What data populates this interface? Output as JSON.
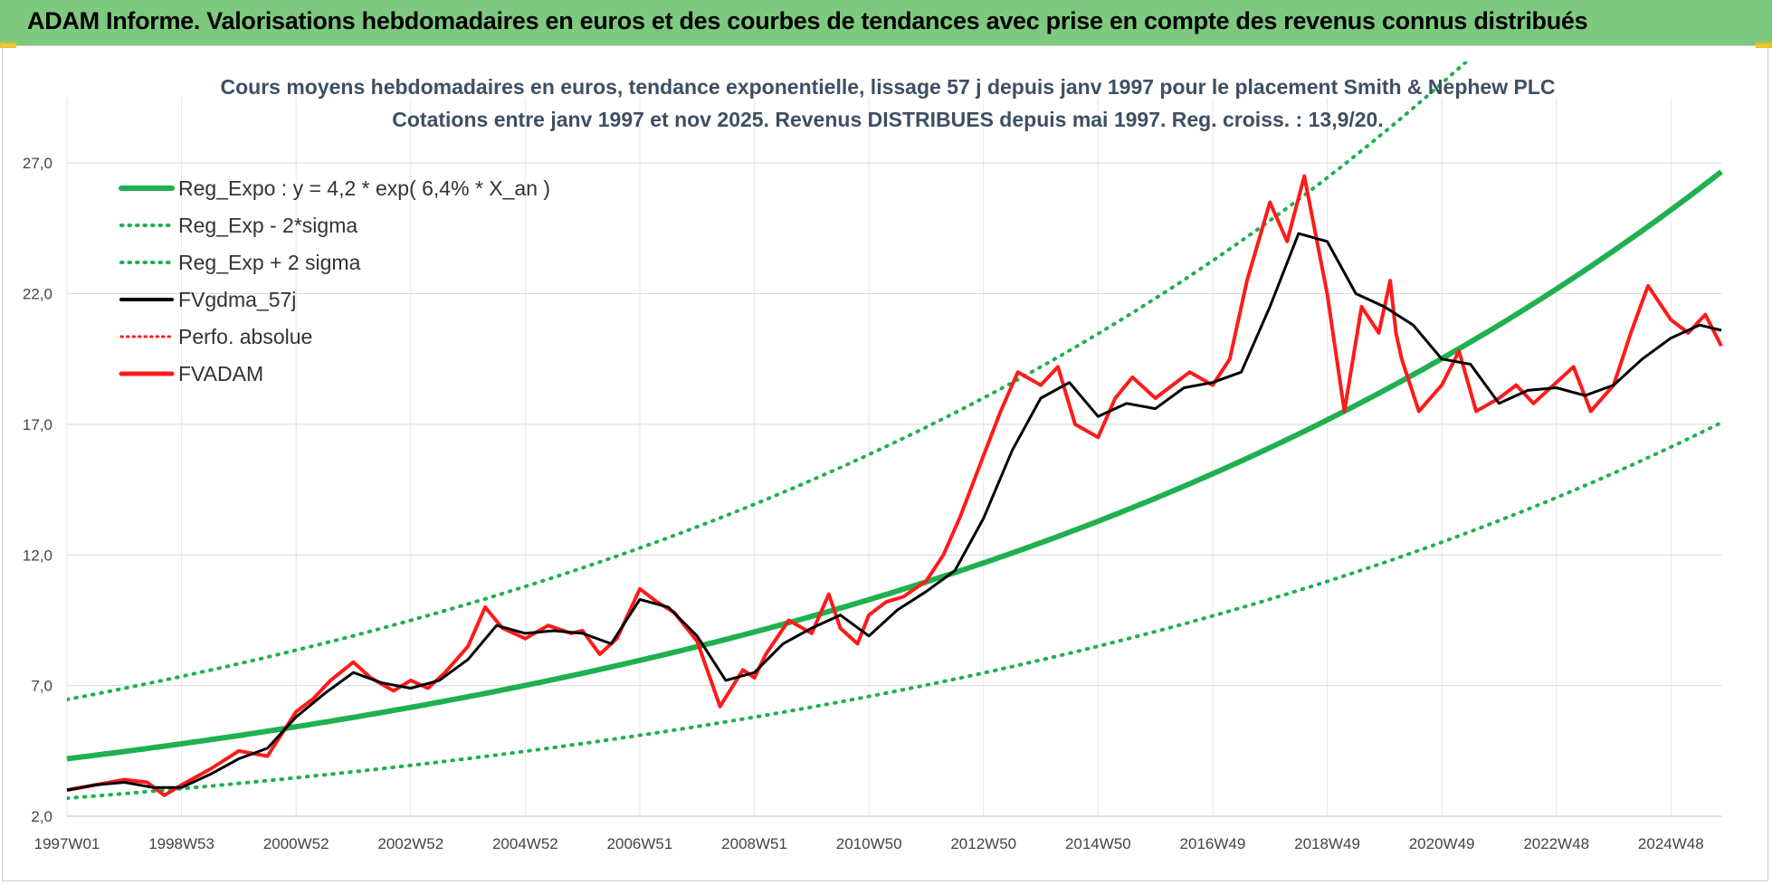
{
  "banner": {
    "title": "ADAM Informe. Valorisations hebdomadaires en euros et des courbes de tendances avec prise en compte des revenus connus distribués"
  },
  "chart_data": {
    "type": "line",
    "title_line1": "Cours moyens hebdomadaires en euros, tendance exponentielle, lissage 57 j depuis janv 1997 pour le placement Smith & Nephew PLC",
    "title_line2": "Cotations entre janv 1997 et nov 2025. Revenus DISTRIBUES depuis mai 1997. Reg. croiss. : 13,9/20.",
    "xlabel": "",
    "ylabel": "",
    "x_start_year": 1997.0,
    "x_end_year": 2025.88,
    "x_tick_labels": [
      "1997W01",
      "1998W53",
      "2000W52",
      "2002W52",
      "2004W52",
      "2006W51",
      "2008W51",
      "2010W50",
      "2012W50",
      "2014W50",
      "2016W49",
      "2018W49",
      "2020W49",
      "2022W48",
      "2024W48"
    ],
    "x_tick_years": [
      1997.0,
      1999.0,
      2001.0,
      2003.0,
      2005.0,
      2007.0,
      2009.0,
      2011.0,
      2013.0,
      2015.0,
      2017.0,
      2019.0,
      2021.0,
      2023.0,
      2025.0
    ],
    "ylim": [
      2.0,
      29.5
    ],
    "y_ticks": [
      2.0,
      7.0,
      12.0,
      17.0,
      22.0,
      27.0
    ],
    "y_tick_labels": [
      "2,0",
      "7,0",
      "12,0",
      "17,0",
      "22,0",
      "27,0"
    ],
    "grid": true,
    "legend_position": "top-left",
    "colors": {
      "regression": "#1fb04f",
      "bands": "#1fb04f",
      "smoothed": "#000000",
      "perfo": "#ff1a1a",
      "price": "#ff1a1a"
    },
    "legend": [
      {
        "label": "Reg_Expo : y = 4,2 * exp( 6,4% *  X_an )",
        "style": "solid-green"
      },
      {
        "label": "Reg_Exp - 2*sigma",
        "style": "dotted-green"
      },
      {
        "label": "Reg_Exp + 2 sigma",
        "style": "dotted-green"
      },
      {
        "label": "FVgdma_57j",
        "style": "solid-black"
      },
      {
        "label": "Perfo. absolue",
        "style": "dotted-red"
      },
      {
        "label": "FVADAM",
        "style": "solid-red"
      }
    ],
    "regression": {
      "a": 4.2,
      "rate": 0.064,
      "lower_factor": 0.64,
      "upper_factor": 1.54
    },
    "series": [
      {
        "name": "FVADAM",
        "x": [
          1997.0,
          1997.5,
          1998.0,
          1998.4,
          1998.7,
          1999.0,
          1999.5,
          2000.0,
          2000.5,
          2001.0,
          2001.3,
          2001.6,
          2002.0,
          2002.3,
          2002.7,
          2003.0,
          2003.3,
          2003.6,
          2004.0,
          2004.3,
          2004.6,
          2005.0,
          2005.4,
          2005.8,
          2006.0,
          2006.3,
          2006.6,
          2007.0,
          2007.3,
          2007.6,
          2008.0,
          2008.4,
          2008.8,
          2009.0,
          2009.2,
          2009.6,
          2010.0,
          2010.3,
          2010.5,
          2010.8,
          2011.0,
          2011.3,
          2011.6,
          2012.0,
          2012.3,
          2012.6,
          2013.0,
          2013.3,
          2013.6,
          2014.0,
          2014.3,
          2014.6,
          2015.0,
          2015.3,
          2015.6,
          2016.0,
          2016.3,
          2016.6,
          2017.0,
          2017.3,
          2017.6,
          2018.0,
          2018.3,
          2018.6,
          2019.0,
          2019.3,
          2019.6,
          2019.9,
          2020.1,
          2020.2,
          2020.3,
          2020.6,
          2021.0,
          2021.3,
          2021.6,
          2022.0,
          2022.3,
          2022.6,
          2023.0,
          2023.3,
          2023.6,
          2024.0,
          2024.3,
          2024.6,
          2025.0,
          2025.3,
          2025.6,
          2025.88
        ],
        "values": [
          3.0,
          3.2,
          3.4,
          3.3,
          2.8,
          3.2,
          3.8,
          4.5,
          4.3,
          6.0,
          6.5,
          7.2,
          7.9,
          7.3,
          6.8,
          7.2,
          6.9,
          7.5,
          8.5,
          10.0,
          9.2,
          8.8,
          9.3,
          9.0,
          9.1,
          8.2,
          8.8,
          10.7,
          10.2,
          9.8,
          8.7,
          6.2,
          7.6,
          7.3,
          8.2,
          9.5,
          9.0,
          10.5,
          9.2,
          8.6,
          9.7,
          10.2,
          10.4,
          11.0,
          12.0,
          13.5,
          15.8,
          17.5,
          19.0,
          18.5,
          19.2,
          17.0,
          16.5,
          18.0,
          18.8,
          18.0,
          18.5,
          19.0,
          18.5,
          19.5,
          22.5,
          25.5,
          24.0,
          26.5,
          22.0,
          17.5,
          21.5,
          20.5,
          22.5,
          20.5,
          19.5,
          17.5,
          18.5,
          19.8,
          17.5,
          18.0,
          18.5,
          17.8,
          18.6,
          19.2,
          17.5,
          18.5,
          20.5,
          22.3,
          21.0,
          20.5,
          21.2,
          20.0
        ]
      },
      {
        "name": "FVgdma_57j",
        "x": [
          1997.0,
          1997.5,
          1998.0,
          1998.5,
          1999.0,
          1999.5,
          2000.0,
          2000.5,
          2001.0,
          2001.5,
          2002.0,
          2002.5,
          2003.0,
          2003.5,
          2004.0,
          2004.5,
          2005.0,
          2005.5,
          2006.0,
          2006.5,
          2007.0,
          2007.5,
          2008.0,
          2008.5,
          2009.0,
          2009.5,
          2010.0,
          2010.5,
          2011.0,
          2011.5,
          2012.0,
          2012.5,
          2013.0,
          2013.5,
          2014.0,
          2014.5,
          2015.0,
          2015.5,
          2016.0,
          2016.5,
          2017.0,
          2017.5,
          2018.0,
          2018.5,
          2019.0,
          2019.5,
          2020.0,
          2020.5,
          2021.0,
          2021.5,
          2022.0,
          2022.5,
          2023.0,
          2023.5,
          2024.0,
          2024.5,
          2025.0,
          2025.5,
          2025.88
        ],
        "values": [
          3.0,
          3.2,
          3.3,
          3.1,
          3.1,
          3.6,
          4.2,
          4.6,
          5.8,
          6.7,
          7.5,
          7.1,
          6.9,
          7.2,
          8.0,
          9.3,
          9.0,
          9.1,
          9.0,
          8.6,
          10.3,
          10.0,
          8.9,
          7.2,
          7.5,
          8.6,
          9.2,
          9.7,
          8.9,
          9.9,
          10.6,
          11.4,
          13.4,
          16.0,
          18.0,
          18.6,
          17.3,
          17.8,
          17.6,
          18.4,
          18.6,
          19.0,
          21.5,
          24.3,
          24.0,
          22.0,
          21.5,
          20.8,
          19.5,
          19.3,
          17.8,
          18.3,
          18.4,
          18.1,
          18.5,
          19.5,
          20.3,
          20.8,
          20.6
        ]
      }
    ]
  }
}
